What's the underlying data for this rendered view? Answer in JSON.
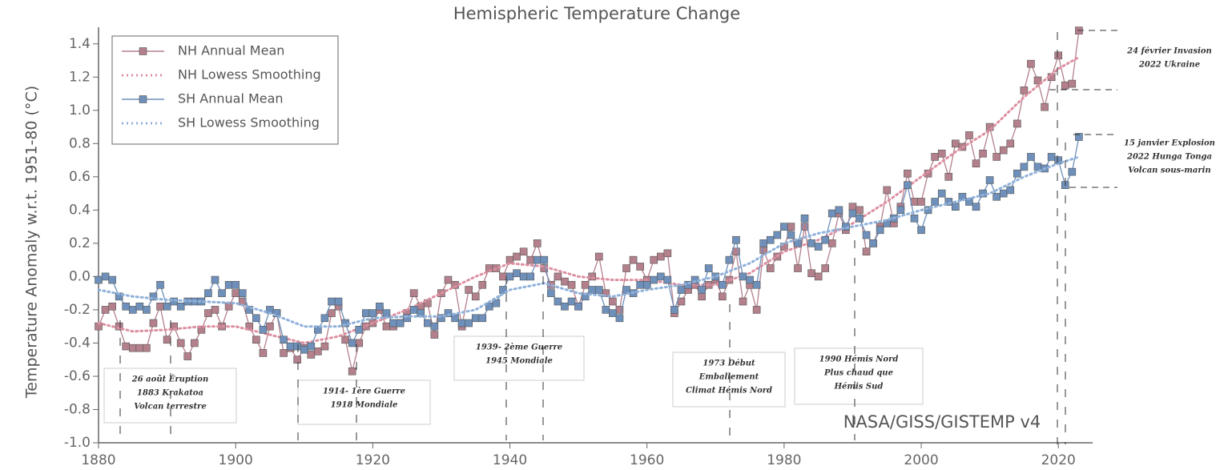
{
  "chart_data": {
    "type": "line",
    "title": "Hemispheric Temperature Change",
    "y_label": "Temperature Anomaly w.r.t. 1951-80 (°C)",
    "source": "NASA/GISS/GISTEMP v4",
    "legend": "upper left",
    "xlim": [
      1880,
      2025
    ],
    "ylim": [
      -1.0,
      1.5
    ],
    "xticks": [
      1880,
      1900,
      1920,
      1940,
      1960,
      1980,
      2000,
      2020
    ],
    "yticks": [
      {
        "value": -1.0,
        "label": "-1.0"
      },
      {
        "value": -0.8,
        "label": "-0.8"
      },
      {
        "value": -0.6,
        "label": "-0.6"
      },
      {
        "value": -0.4,
        "label": "-0.4"
      },
      {
        "value": -0.2,
        "label": "-0.2"
      },
      {
        "value": 0.0,
        "label": "0.0"
      },
      {
        "value": 0.2,
        "label": "0.2"
      },
      {
        "value": 0.4,
        "label": "0.4"
      },
      {
        "value": 0.6,
        "label": "0.6"
      },
      {
        "value": 0.8,
        "label": "0.8"
      },
      {
        "value": 1.0,
        "label": "1.0"
      },
      {
        "value": 1.2,
        "label": "1.2"
      },
      {
        "value": 1.4,
        "label": "1.4"
      }
    ],
    "x": [
      1880,
      1881,
      1882,
      1883,
      1884,
      1885,
      1886,
      1887,
      1888,
      1889,
      1890,
      1891,
      1892,
      1893,
      1894,
      1895,
      1896,
      1897,
      1898,
      1899,
      1900,
      1901,
      1902,
      1903,
      1904,
      1905,
      1906,
      1907,
      1908,
      1909,
      1910,
      1911,
      1912,
      1913,
      1914,
      1915,
      1916,
      1917,
      1918,
      1919,
      1920,
      1921,
      1922,
      1923,
      1924,
      1925,
      1926,
      1927,
      1928,
      1929,
      1930,
      1931,
      1932,
      1933,
      1934,
      1935,
      1936,
      1937,
      1938,
      1939,
      1940,
      1941,
      1942,
      1943,
      1944,
      1945,
      1946,
      1947,
      1948,
      1949,
      1950,
      1951,
      1952,
      1953,
      1954,
      1955,
      1956,
      1957,
      1958,
      1959,
      1960,
      1961,
      1962,
      1963,
      1964,
      1965,
      1966,
      1967,
      1968,
      1969,
      1970,
      1971,
      1972,
      1973,
      1974,
      1975,
      1976,
      1977,
      1978,
      1979,
      1980,
      1981,
      1982,
      1983,
      1984,
      1985,
      1986,
      1987,
      1988,
      1989,
      1990,
      1991,
      1992,
      1993,
      1994,
      1995,
      1996,
      1997,
      1998,
      1999,
      2000,
      2001,
      2002,
      2003,
      2004,
      2005,
      2006,
      2007,
      2008,
      2009,
      2010,
      2011,
      2012,
      2013,
      2014,
      2015,
      2016,
      2017,
      2018,
      2019,
      2020,
      2021,
      2022,
      2023
    ],
    "series": [
      {
        "name": "NH Annual Mean",
        "color": "#b3808c",
        "style": "markers",
        "values": [
          -0.3,
          -0.2,
          -0.18,
          -0.3,
          -0.42,
          -0.43,
          -0.43,
          -0.43,
          -0.28,
          -0.18,
          -0.38,
          -0.3,
          -0.4,
          -0.48,
          -0.4,
          -0.32,
          -0.22,
          -0.2,
          -0.3,
          -0.18,
          -0.1,
          -0.15,
          -0.3,
          -0.38,
          -0.46,
          -0.3,
          -0.22,
          -0.46,
          -0.43,
          -0.5,
          -0.43,
          -0.47,
          -0.45,
          -0.42,
          -0.22,
          -0.18,
          -0.38,
          -0.57,
          -0.4,
          -0.3,
          -0.28,
          -0.2,
          -0.3,
          -0.3,
          -0.28,
          -0.22,
          -0.1,
          -0.18,
          -0.16,
          -0.35,
          -0.1,
          -0.02,
          -0.05,
          -0.3,
          -0.08,
          -0.12,
          -0.05,
          0.05,
          0.05,
          0.0,
          0.1,
          0.12,
          0.15,
          0.1,
          0.2,
          0.05,
          -0.05,
          0.0,
          -0.03,
          -0.05,
          -0.18,
          -0.05,
          0.0,
          0.12,
          -0.1,
          -0.15,
          -0.2,
          0.05,
          0.1,
          0.06,
          -0.02,
          0.1,
          0.12,
          0.14,
          -0.22,
          -0.15,
          -0.08,
          -0.05,
          -0.12,
          -0.05,
          -0.02,
          -0.12,
          -0.02,
          0.15,
          -0.15,
          -0.05,
          -0.2,
          0.16,
          0.05,
          0.12,
          0.18,
          0.3,
          0.05,
          0.3,
          0.02,
          0.0,
          0.05,
          0.2,
          0.38,
          0.28,
          0.42,
          0.4,
          0.15,
          0.2,
          0.3,
          0.52,
          0.32,
          0.42,
          0.62,
          0.45,
          0.45,
          0.62,
          0.72,
          0.74,
          0.6,
          0.8,
          0.78,
          0.85,
          0.68,
          0.74,
          0.9,
          0.72,
          0.76,
          0.8,
          0.92,
          1.12,
          1.28,
          1.18,
          1.02,
          1.2,
          1.33,
          1.15,
          1.16,
          1.48
        ]
      },
      {
        "name": "NH Lowess Smoothing",
        "color": "#dc8fa0",
        "style": "dotted",
        "x": [
          1880,
          1885,
          1890,
          1895,
          1900,
          1905,
          1910,
          1915,
          1920,
          1925,
          1930,
          1935,
          1940,
          1945,
          1950,
          1955,
          1960,
          1965,
          1970,
          1975,
          1980,
          1985,
          1990,
          1995,
          2000,
          2005,
          2010,
          2015,
          2020,
          2023
        ],
        "values": [
          -0.28,
          -0.33,
          -0.32,
          -0.3,
          -0.3,
          -0.35,
          -0.4,
          -0.36,
          -0.28,
          -0.2,
          -0.1,
          0.0,
          0.08,
          0.06,
          0.0,
          -0.02,
          -0.02,
          -0.05,
          -0.05,
          0.02,
          0.15,
          0.22,
          0.32,
          0.45,
          0.6,
          0.75,
          0.88,
          1.08,
          1.25,
          1.32
        ]
      },
      {
        "name": "SH Annual Mean",
        "color": "#6e90ba",
        "style": "markers",
        "values": [
          -0.02,
          0.0,
          -0.02,
          -0.12,
          -0.18,
          -0.2,
          -0.18,
          -0.2,
          -0.12,
          -0.05,
          -0.18,
          -0.15,
          -0.18,
          -0.15,
          -0.15,
          -0.15,
          -0.1,
          -0.02,
          -0.1,
          -0.05,
          -0.05,
          -0.1,
          -0.2,
          -0.25,
          -0.32,
          -0.2,
          -0.22,
          -0.38,
          -0.42,
          -0.42,
          -0.44,
          -0.42,
          -0.32,
          -0.25,
          -0.15,
          -0.15,
          -0.28,
          -0.4,
          -0.32,
          -0.22,
          -0.22,
          -0.18,
          -0.22,
          -0.28,
          -0.28,
          -0.25,
          -0.2,
          -0.22,
          -0.28,
          -0.3,
          -0.25,
          -0.22,
          -0.25,
          -0.28,
          -0.28,
          -0.25,
          -0.25,
          -0.18,
          -0.16,
          -0.08,
          0.0,
          0.02,
          0.0,
          0.0,
          0.1,
          0.1,
          -0.1,
          -0.15,
          -0.18,
          -0.15,
          -0.18,
          -0.12,
          -0.08,
          -0.08,
          -0.2,
          -0.22,
          -0.25,
          -0.08,
          -0.1,
          -0.05,
          -0.05,
          -0.02,
          0.0,
          -0.02,
          -0.2,
          -0.08,
          -0.05,
          -0.02,
          -0.08,
          0.05,
          0.0,
          -0.05,
          0.1,
          0.22,
          0.0,
          -0.02,
          -0.05,
          0.2,
          0.22,
          0.25,
          0.3,
          0.25,
          0.2,
          0.35,
          0.2,
          0.18,
          0.22,
          0.38,
          0.4,
          0.3,
          0.38,
          0.35,
          0.25,
          0.2,
          0.28,
          0.32,
          0.35,
          0.4,
          0.55,
          0.35,
          0.28,
          0.4,
          0.45,
          0.5,
          0.45,
          0.42,
          0.48,
          0.45,
          0.42,
          0.5,
          0.58,
          0.48,
          0.5,
          0.52,
          0.62,
          0.66,
          0.72,
          0.66,
          0.65,
          0.72,
          0.7,
          0.55,
          0.63,
          0.84
        ]
      },
      {
        "name": "SH Lowess Smoothing",
        "color": "#8fb1da",
        "style": "dotted",
        "x": [
          1880,
          1885,
          1890,
          1895,
          1900,
          1905,
          1910,
          1915,
          1920,
          1925,
          1930,
          1935,
          1940,
          1945,
          1950,
          1955,
          1960,
          1965,
          1970,
          1975,
          1980,
          1985,
          1990,
          1995,
          2000,
          2005,
          2010,
          2015,
          2020,
          2023
        ],
        "values": [
          -0.08,
          -0.12,
          -0.14,
          -0.15,
          -0.16,
          -0.22,
          -0.3,
          -0.3,
          -0.25,
          -0.24,
          -0.24,
          -0.2,
          -0.08,
          -0.04,
          -0.1,
          -0.12,
          -0.08,
          -0.05,
          0.0,
          0.08,
          0.2,
          0.26,
          0.3,
          0.34,
          0.4,
          0.45,
          0.5,
          0.6,
          0.68,
          0.72
        ]
      }
    ],
    "annotations": [
      {
        "lines": [
          "26 août    Éruption",
          "1883    Krakatoa",
          "Volcan terrestre"
        ]
      },
      {
        "lines": [
          "1914-    1ère Guerre",
          "1918    Mondiale"
        ]
      },
      {
        "lines": [
          "1939-    2ème Guerre",
          "1945    Mondiale"
        ]
      },
      {
        "lines": [
          "1973    Début",
          "Emballement",
          "Climat Hémis Nord"
        ]
      },
      {
        "lines": [
          "1990    Hémis Nord",
          "Plus chaud que",
          "Hémis Sud"
        ]
      },
      {
        "lines": [
          "24 février    Invasion",
          "2022    Ukraine"
        ]
      },
      {
        "lines": [
          "15 janvier Explosion",
          "2022 Hunga Tonga",
          "Volcan sous-marin"
        ]
      }
    ]
  }
}
